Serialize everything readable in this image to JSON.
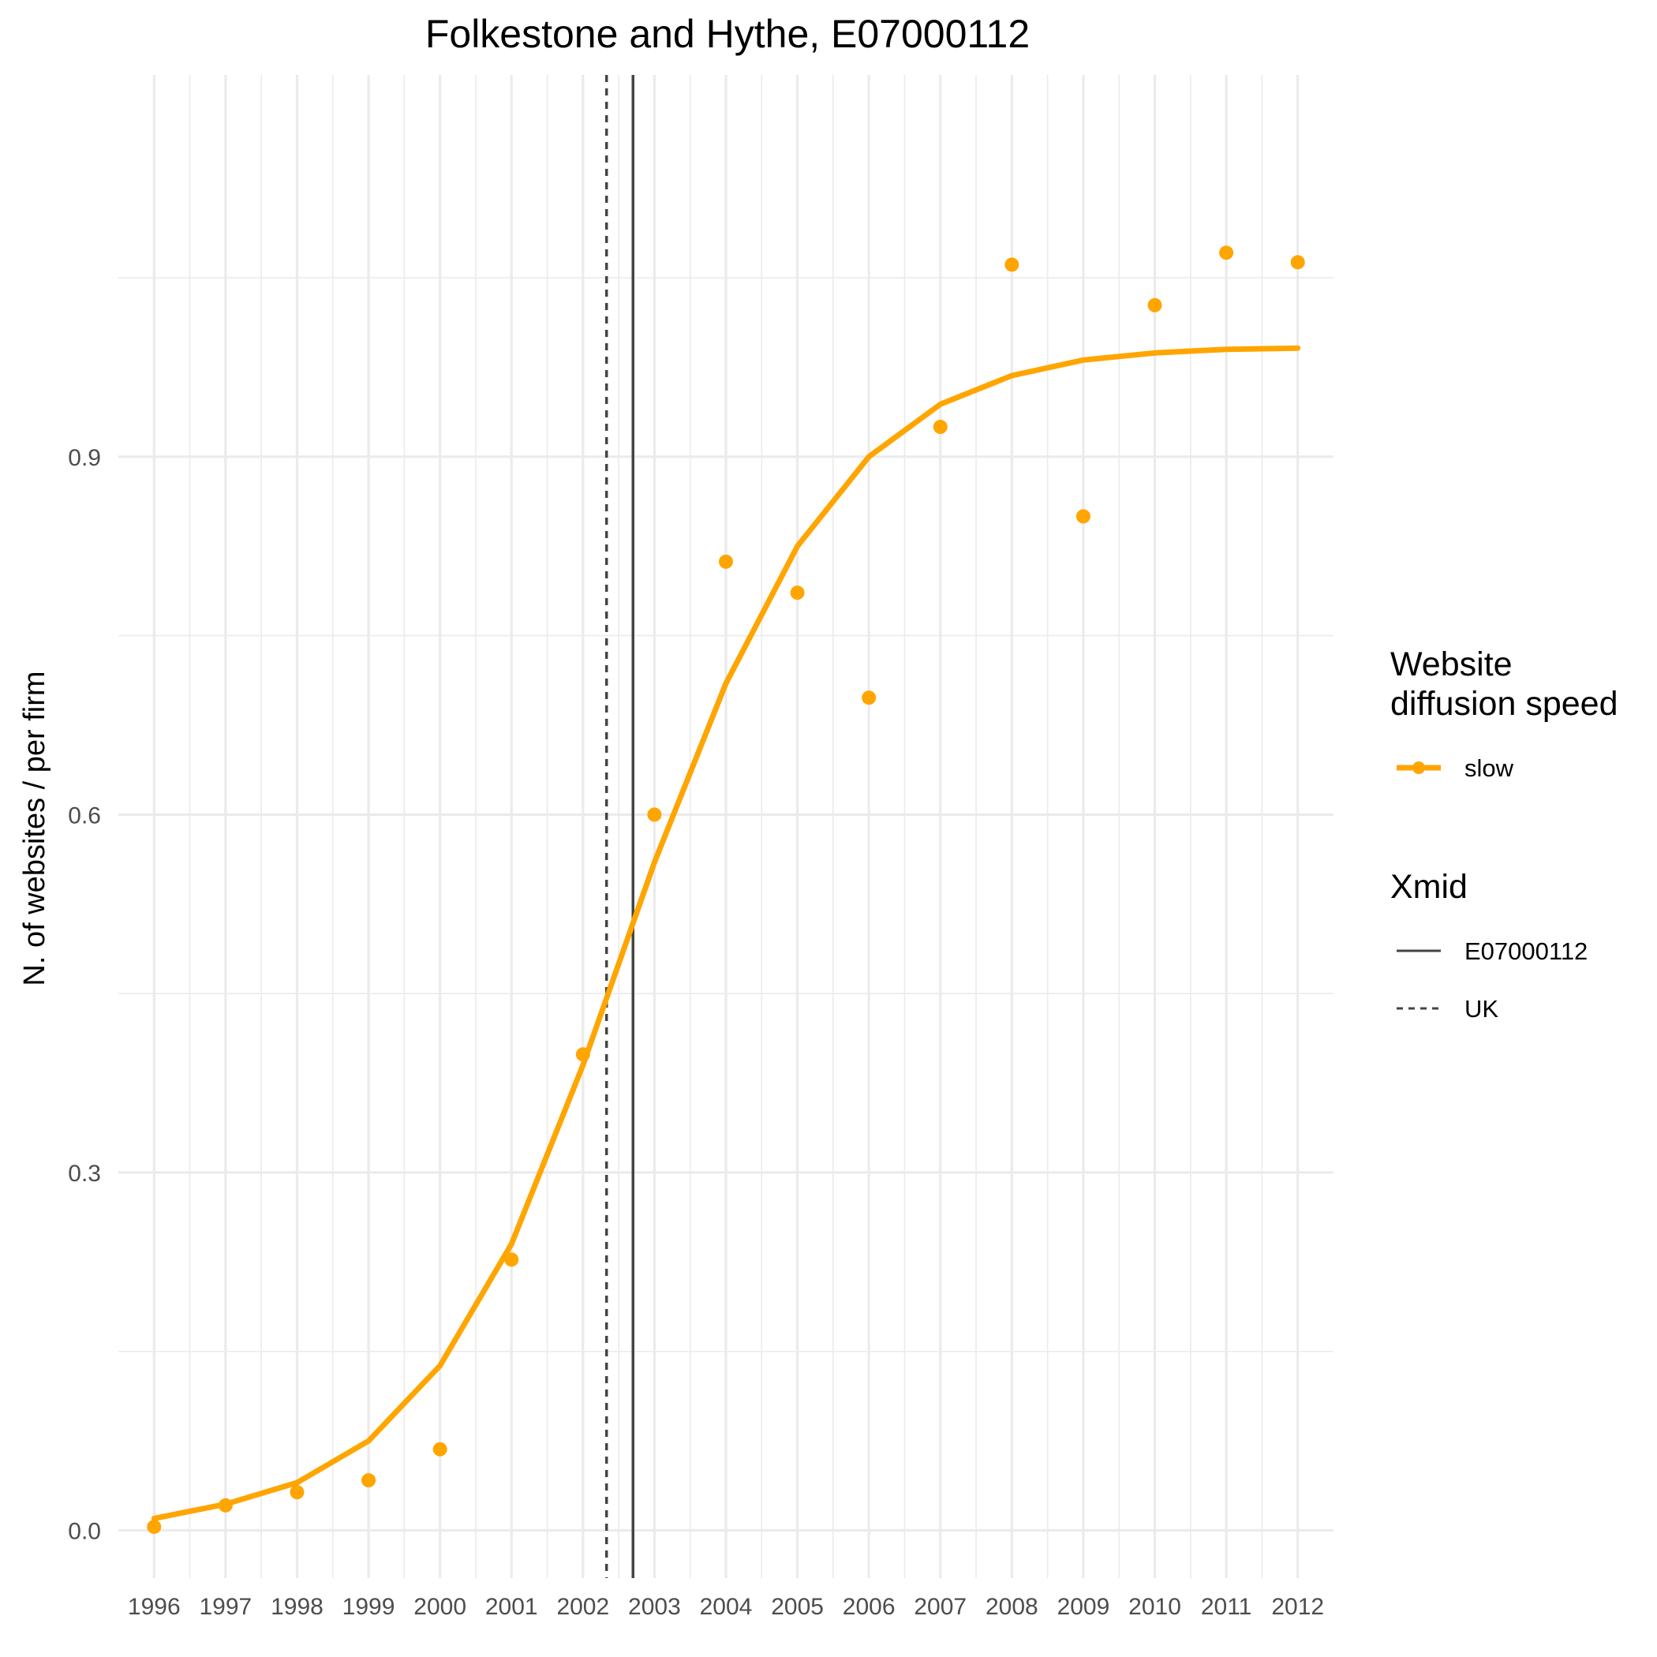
{
  "chart_data": {
    "type": "line",
    "title": "Folkestone and Hythe, E07000112",
    "xlabel": "",
    "ylabel": "N. of websites / per firm",
    "x": [
      1996,
      1997,
      1998,
      1999,
      2000,
      2001,
      2002,
      2003,
      2004,
      2005,
      2006,
      2007,
      2008,
      2009,
      2010,
      2011,
      2012
    ],
    "x_ticks": [
      "1996",
      "1997",
      "1998",
      "1999",
      "2000",
      "2001",
      "2002",
      "2003",
      "2004",
      "2005",
      "2006",
      "2007",
      "2008",
      "2009",
      "2010",
      "2011",
      "2012"
    ],
    "y_ticks": [
      "0.0",
      "0.3",
      "0.6",
      "0.9"
    ],
    "xlim": [
      1995.5,
      2012.5
    ],
    "ylim": [
      -0.04,
      1.22
    ],
    "grid": true,
    "series": [
      {
        "name": "slow",
        "color": "#FFA500",
        "points": [
          0.003,
          0.021,
          0.032,
          0.042,
          0.068,
          0.227,
          0.399,
          0.6,
          0.812,
          0.786,
          0.698,
          0.925,
          1.061,
          0.85,
          1.027,
          1.071,
          1.063
        ],
        "fit": [
          0.01,
          0.022,
          0.04,
          0.075,
          0.138,
          0.24,
          0.39,
          0.56,
          0.71,
          0.825,
          0.9,
          0.944,
          0.968,
          0.981,
          0.987,
          0.99,
          0.991
        ]
      }
    ],
    "vlines": [
      {
        "name": "E07000112",
        "x": 2002.7,
        "linetype": "solid",
        "color": "#444444"
      },
      {
        "name": "UK",
        "x": 2002.33,
        "linetype": "dashed",
        "color": "#444444"
      }
    ],
    "legend": {
      "placement": "right",
      "groups": [
        {
          "title_lines": [
            "Website",
            "diffusion speed"
          ],
          "items": [
            "slow"
          ]
        },
        {
          "title_lines": [
            "Xmid"
          ],
          "items": [
            "E07000112",
            "UK"
          ]
        }
      ]
    }
  }
}
